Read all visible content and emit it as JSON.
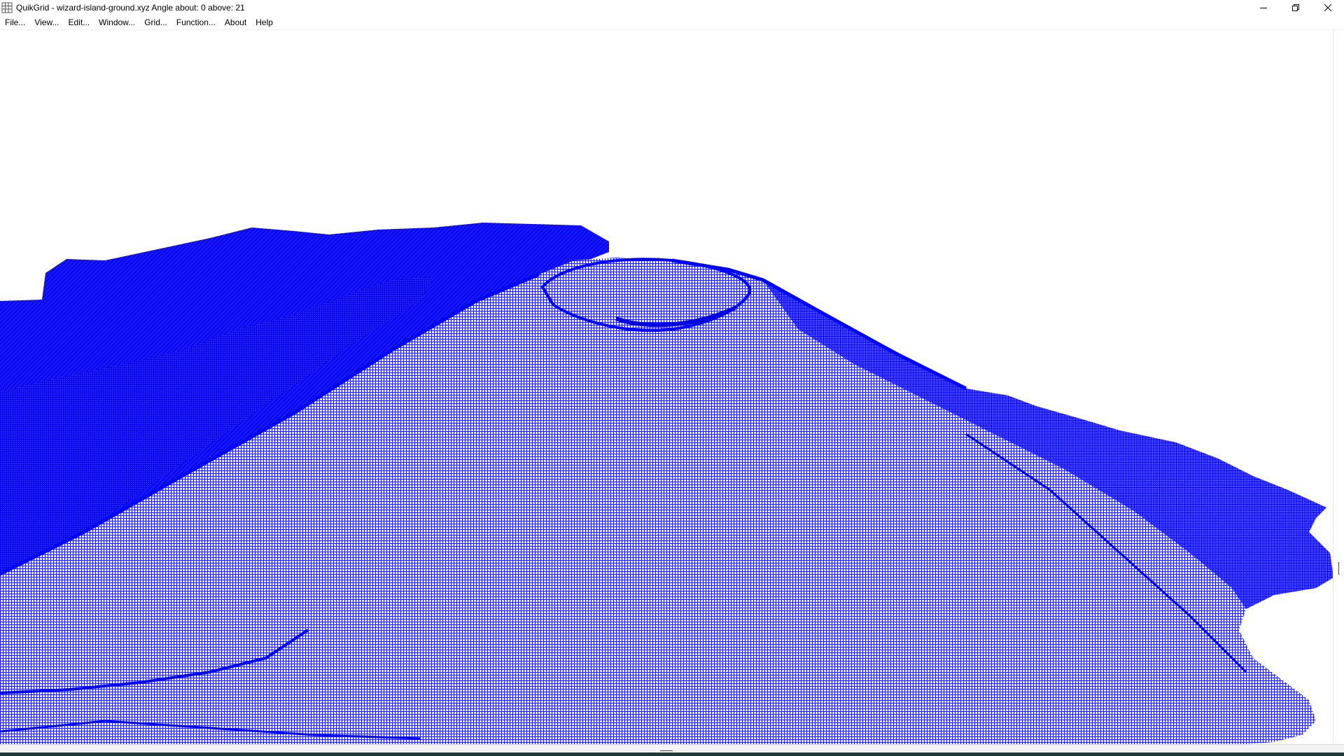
{
  "window": {
    "title": "QuikGrid - wizard-island-ground.xyz Angle about: 0 above: 21"
  },
  "menu": {
    "items": [
      {
        "name": "menu-file",
        "label": "File..."
      },
      {
        "name": "menu-view",
        "label": "View..."
      },
      {
        "name": "menu-edit",
        "label": "Edit..."
      },
      {
        "name": "menu-window",
        "label": "Window..."
      },
      {
        "name": "menu-grid",
        "label": "Grid..."
      },
      {
        "name": "menu-function",
        "label": "Function..."
      },
      {
        "name": "menu-about",
        "label": "About"
      },
      {
        "name": "menu-help",
        "label": "Help"
      }
    ]
  },
  "view": {
    "angle_about": 0,
    "angle_above": 21,
    "mesh_color": "#0000ff",
    "background_color": "#ffffff"
  },
  "icons": {
    "app": "grid-icon",
    "minimize": "minimize-icon",
    "maximize": "restore-icon",
    "close": "close-icon"
  }
}
